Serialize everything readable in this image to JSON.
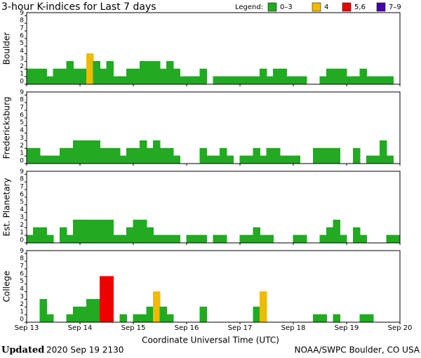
{
  "title": "3-hour K-indices for Last 7 days",
  "legend": {
    "title": "Legend:",
    "items": [
      {
        "label": "0–3",
        "color": "#2a2"
      },
      {
        "label": "4",
        "color": "#eb0"
      },
      {
        "label": "5,6",
        "color": "#e00"
      },
      {
        "label": "7–9",
        "color": "#40a"
      }
    ]
  },
  "x_axis": {
    "labels": [
      "Sep 13",
      "Sep 14",
      "Sep 15",
      "Sep 16",
      "Sep 17",
      "Sep 18",
      "Sep 19",
      "Sep 20"
    ],
    "title": "Coordinate Universal Time (UTC)"
  },
  "footer": {
    "updated_label": "Updated",
    "updated": "2020 Sep 19 2130",
    "source": "NOAA/SWPC Boulder, CO USA"
  },
  "chart_data": [
    {
      "type": "bar",
      "ylabel": "Boulder",
      "ylim": [
        0,
        9.4
      ],
      "yticks": [
        0,
        1,
        2,
        3,
        4,
        5,
        6,
        7,
        8,
        9
      ],
      "values": [
        2,
        2,
        2,
        1,
        2,
        2,
        3,
        2,
        2,
        4,
        3,
        2,
        3,
        1,
        1,
        2,
        2,
        3,
        3,
        3,
        2,
        3,
        2,
        1,
        1,
        1,
        2,
        0,
        1,
        1,
        1,
        1,
        1,
        1,
        1,
        2,
        1,
        2,
        2,
        1,
        1,
        1,
        0,
        0,
        1,
        2,
        2,
        2,
        1,
        1,
        2,
        1,
        1,
        1,
        1,
        0
      ],
      "colors": [
        "#2a2",
        "#2a2",
        "#2a2",
        "#2a2",
        "#2a2",
        "#2a2",
        "#2a2",
        "#2a2",
        "#2a2",
        "#eb0",
        "#2a2",
        "#2a2",
        "#2a2",
        "#2a2",
        "#2a2",
        "#2a2",
        "#2a2",
        "#2a2",
        "#2a2",
        "#2a2",
        "#2a2",
        "#2a2",
        "#2a2",
        "#2a2",
        "#2a2",
        "#2a2",
        "#2a2",
        "#2a2",
        "#2a2",
        "#2a2",
        "#2a2",
        "#2a2",
        "#2a2",
        "#2a2",
        "#2a2",
        "#2a2",
        "#2a2",
        "#2a2",
        "#2a2",
        "#2a2",
        "#2a2",
        "#2a2",
        "#2a2",
        "#2a2",
        "#2a2",
        "#2a2",
        "#2a2",
        "#2a2",
        "#2a2",
        "#2a2",
        "#2a2",
        "#2a2",
        "#2a2",
        "#2a2",
        "#2a2",
        "#2a2"
      ]
    },
    {
      "type": "bar",
      "ylabel": "Fredericksburg",
      "ylim": [
        0,
        9.4
      ],
      "yticks": [
        0,
        1,
        2,
        3,
        4,
        5,
        6,
        7,
        8,
        9
      ],
      "values": [
        2,
        2,
        1,
        1,
        1,
        2,
        2,
        3,
        3,
        3,
        3,
        2,
        2,
        2,
        1,
        2,
        2,
        3,
        2,
        3,
        2,
        2,
        1,
        0,
        0,
        0,
        2,
        1,
        1,
        2,
        1,
        0,
        1,
        1,
        2,
        1,
        2,
        2,
        1,
        1,
        1,
        0,
        0,
        2,
        2,
        2,
        2,
        0,
        0,
        2,
        0,
        1,
        1,
        3,
        1,
        0
      ],
      "colors": [
        "#2a2",
        "#2a2",
        "#2a2",
        "#2a2",
        "#2a2",
        "#2a2",
        "#2a2",
        "#2a2",
        "#2a2",
        "#2a2",
        "#2a2",
        "#2a2",
        "#2a2",
        "#2a2",
        "#2a2",
        "#2a2",
        "#2a2",
        "#2a2",
        "#2a2",
        "#2a2",
        "#2a2",
        "#2a2",
        "#2a2",
        "#2a2",
        "#2a2",
        "#2a2",
        "#2a2",
        "#2a2",
        "#2a2",
        "#2a2",
        "#2a2",
        "#2a2",
        "#2a2",
        "#2a2",
        "#2a2",
        "#2a2",
        "#2a2",
        "#2a2",
        "#2a2",
        "#2a2",
        "#2a2",
        "#2a2",
        "#2a2",
        "#2a2",
        "#2a2",
        "#2a2",
        "#2a2",
        "#2a2",
        "#2a2",
        "#2a2",
        "#2a2",
        "#2a2",
        "#2a2",
        "#2a2",
        "#2a2",
        "#2a2"
      ]
    },
    {
      "type": "bar",
      "ylabel": "Est. Planetary",
      "ylim": [
        0,
        9.4
      ],
      "yticks": [
        0,
        1,
        2,
        3,
        4,
        5,
        6,
        7,
        8,
        9
      ],
      "values": [
        1,
        2,
        2,
        1,
        0,
        2,
        1,
        3,
        3,
        3,
        3,
        3,
        3,
        1,
        1,
        2,
        3,
        3,
        2,
        1,
        1,
        1,
        1,
        0,
        1,
        1,
        1,
        0,
        1,
        1,
        0,
        0,
        1,
        1,
        2,
        1,
        1,
        0,
        0,
        0,
        1,
        1,
        0,
        0,
        1,
        2,
        3,
        1,
        0,
        2,
        1,
        0,
        0,
        0,
        1,
        1
      ],
      "colors": [
        "#2a2",
        "#2a2",
        "#2a2",
        "#2a2",
        "#2a2",
        "#2a2",
        "#2a2",
        "#2a2",
        "#2a2",
        "#2a2",
        "#2a2",
        "#2a2",
        "#2a2",
        "#2a2",
        "#2a2",
        "#2a2",
        "#2a2",
        "#2a2",
        "#2a2",
        "#2a2",
        "#2a2",
        "#2a2",
        "#2a2",
        "#2a2",
        "#2a2",
        "#2a2",
        "#2a2",
        "#2a2",
        "#2a2",
        "#2a2",
        "#2a2",
        "#2a2",
        "#2a2",
        "#2a2",
        "#2a2",
        "#2a2",
        "#2a2",
        "#2a2",
        "#2a2",
        "#2a2",
        "#2a2",
        "#2a2",
        "#2a2",
        "#2a2",
        "#2a2",
        "#2a2",
        "#2a2",
        "#2a2",
        "#2a2",
        "#2a2",
        "#2a2",
        "#2a2",
        "#2a2",
        "#2a2",
        "#2a2",
        "#2a2"
      ]
    },
    {
      "type": "bar",
      "ylabel": "College",
      "ylim": [
        0,
        9.4
      ],
      "yticks": [
        0,
        1,
        2,
        3,
        4,
        5,
        6,
        7,
        8,
        9
      ],
      "values": [
        0,
        0,
        3,
        1,
        0,
        0,
        1,
        2,
        2,
        3,
        3,
        6,
        6,
        0,
        1,
        0,
        1,
        1,
        2,
        4,
        2,
        1,
        0,
        0,
        0,
        0,
        2,
        0,
        0,
        0,
        0,
        0,
        0,
        0,
        2,
        4,
        0,
        0,
        0,
        0,
        0,
        0,
        0,
        1,
        1,
        0,
        1,
        0,
        0,
        0,
        1,
        1,
        0,
        0,
        0,
        0
      ],
      "colors": [
        "#2a2",
        "#2a2",
        "#2a2",
        "#2a2",
        "#2a2",
        "#2a2",
        "#2a2",
        "#2a2",
        "#2a2",
        "#2a2",
        "#2a2",
        "#e00",
        "#e00",
        "#2a2",
        "#2a2",
        "#2a2",
        "#2a2",
        "#2a2",
        "#2a2",
        "#eb0",
        "#2a2",
        "#2a2",
        "#2a2",
        "#2a2",
        "#2a2",
        "#2a2",
        "#2a2",
        "#2a2",
        "#2a2",
        "#2a2",
        "#2a2",
        "#2a2",
        "#2a2",
        "#2a2",
        "#2a2",
        "#eb0",
        "#2a2",
        "#2a2",
        "#2a2",
        "#2a2",
        "#2a2",
        "#2a2",
        "#2a2",
        "#2a2",
        "#2a2",
        "#2a2",
        "#2a2",
        "#2a2",
        "#2a2",
        "#2a2",
        "#2a2",
        "#2a2",
        "#2a2",
        "#2a2",
        "#2a2",
        "#2a2"
      ]
    }
  ]
}
